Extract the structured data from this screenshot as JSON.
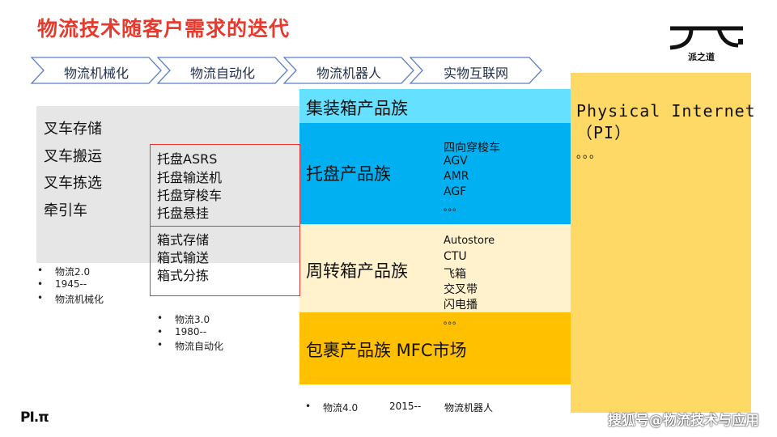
{
  "title": "物流技术随客户需求的迭代",
  "stages": [
    "物流机械化",
    "物流自动化",
    "物流机器人",
    "实物互联网"
  ],
  "mechanization": {
    "items": [
      "叉车存储",
      "叉车搬运",
      "叉车拣选",
      "牵引车"
    ],
    "bullets": [
      "物流2.0",
      "1945--",
      "物流机械化"
    ]
  },
  "automation": {
    "pallet": [
      "托盘ASRS",
      "托盘输送机",
      "托盘穿梭车",
      "托盘悬挂"
    ],
    "tote": [
      "箱式存储",
      "箱式输送",
      "箱式分拣"
    ],
    "bullets": [
      "物流3.0",
      "1980--",
      "物流自动化"
    ]
  },
  "robotics": {
    "container": "集装箱产品族",
    "pallet": {
      "title": "托盘产品族",
      "items": [
        "四向穿梭车",
        "AGV",
        "AMR",
        "AGF",
        "。。。"
      ]
    },
    "tote": {
      "title": "周转箱产品族",
      "items": [
        "Autostore",
        "CTU",
        "飞箱",
        "交叉带",
        "闪电播",
        "。。。"
      ]
    },
    "parcel": "包裹产品族 MFC市场",
    "bullet": [
      "物流4.0",
      "2015--",
      "物流机器人"
    ]
  },
  "physical_internet": {
    "line1": "Physical Internet",
    "line2": "（PI）",
    "line3": "。。。"
  },
  "logo_text": "派之道",
  "footer_logo": "PI.π",
  "watermark": "搜狐号@物流技术与应用",
  "colors": {
    "title": "#e8392d",
    "container": "#66e0ff",
    "pallet": "#00b0f0",
    "tote": "#fff2cc",
    "parcel": "#ffc000",
    "pi": "#ffd966"
  }
}
